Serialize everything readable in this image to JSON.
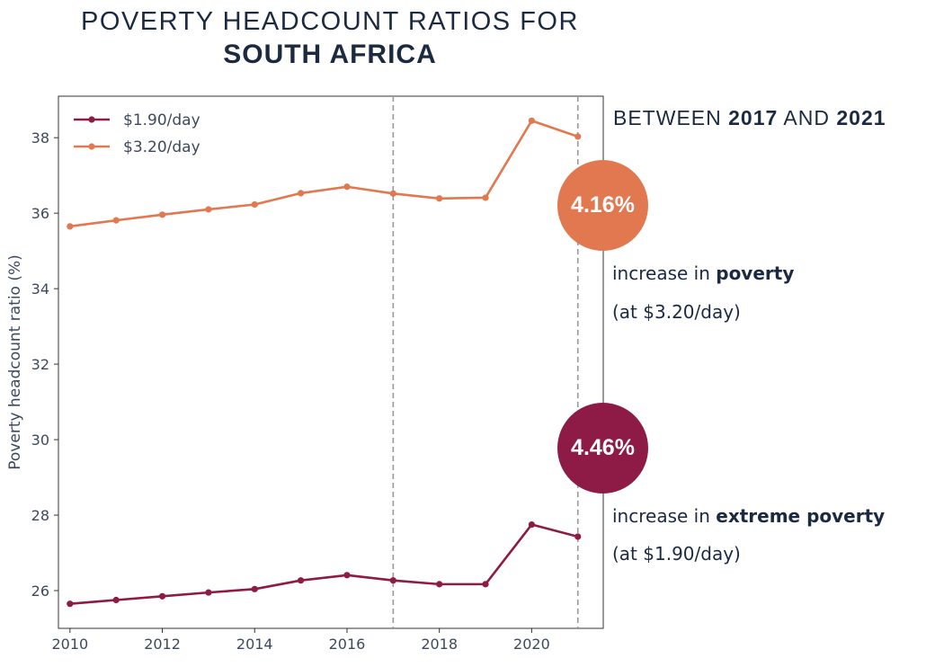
{
  "title": {
    "line1": "POVERTY HEADCOUNT RATIOS FOR",
    "line2": "SOUTH AFRICA"
  },
  "annotation": {
    "heading_prefix": "BETWEEN ",
    "heading_year1": "2017",
    "heading_mid": " AND ",
    "heading_year2": "2021",
    "poverty_pct": "4.16%",
    "poverty_line1_prefix": "increase in ",
    "poverty_line1_bold": "poverty",
    "poverty_line2": "(at $3.20/day)",
    "extreme_pct": "4.46%",
    "extreme_line1_prefix": "increase in ",
    "extreme_line1_bold": "extreme poverty",
    "extreme_line2": "(at $1.90/day)"
  },
  "colors": {
    "extreme": "#8e1b45",
    "poverty": "#e2784f",
    "text": "#1b2a41"
  },
  "chart_data": {
    "type": "line",
    "ylabel": "Poverty headcount ratio (%)",
    "xlabel": "",
    "xlim": [
      2009.75,
      2021.55
    ],
    "ylim": [
      25.0,
      39.1
    ],
    "xticks": [
      2010,
      2012,
      2014,
      2016,
      2018,
      2020
    ],
    "yticks": [
      26,
      28,
      30,
      32,
      34,
      36,
      38
    ],
    "x": [
      2010,
      2011,
      2012,
      2013,
      2014,
      2015,
      2016,
      2017,
      2018,
      2019,
      2020,
      2021
    ],
    "vlines": [
      2017,
      2021
    ],
    "legend_position": "top-left",
    "series": [
      {
        "name": "$1.90/day",
        "color": "#8e1b45",
        "values": [
          25.65,
          25.75,
          25.85,
          25.95,
          26.04,
          26.27,
          26.41,
          26.27,
          26.17,
          26.17,
          27.75,
          27.43
        ]
      },
      {
        "name": "$3.20/day",
        "color": "#e2784f",
        "values": [
          35.65,
          35.81,
          35.96,
          36.1,
          36.23,
          36.53,
          36.7,
          36.52,
          36.39,
          36.41,
          38.45,
          38.03
        ]
      }
    ]
  }
}
